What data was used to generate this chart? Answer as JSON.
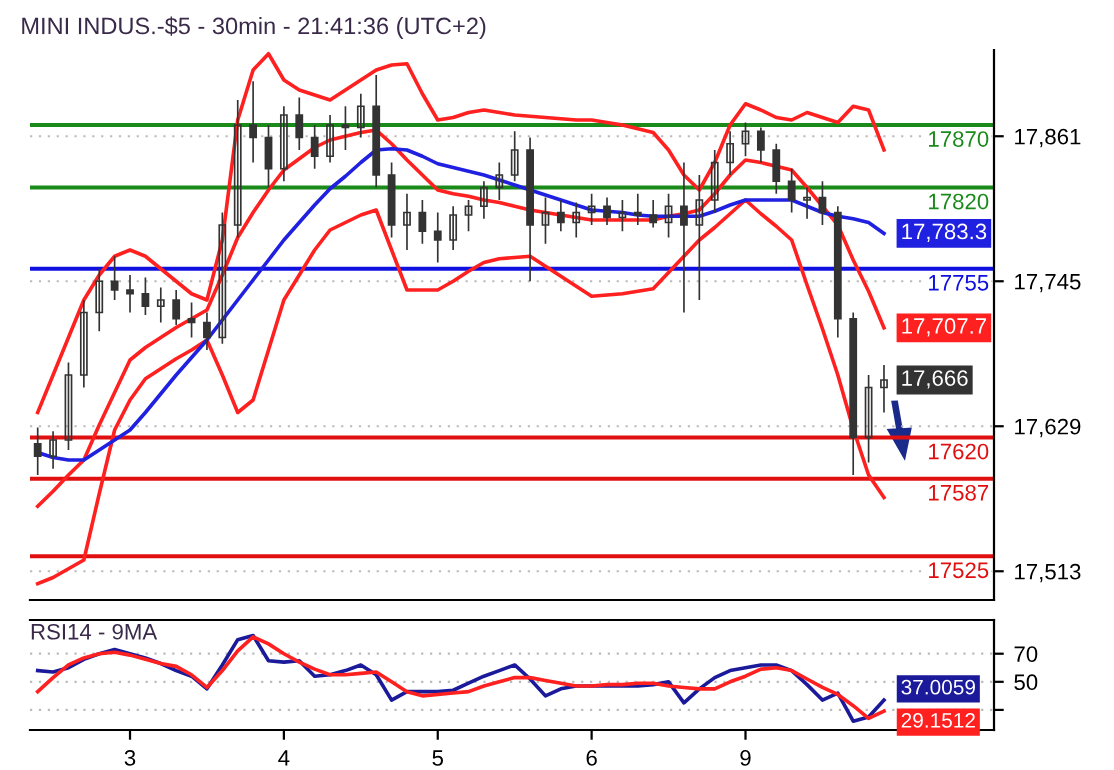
{
  "chart_data": [
    {
      "type": "candlestick",
      "title": "MINI INDUS.-$5 - 30min - 21:41:36 (UTC+2)",
      "color": "#333333",
      "categories": [
        null,
        null,
        null,
        null,
        null,
        null,
        null,
        null,
        null,
        null,
        null,
        null,
        null,
        null,
        null,
        null,
        null,
        null,
        null,
        null,
        null,
        null,
        null,
        null,
        null,
        null,
        null,
        null,
        null,
        null,
        null,
        null,
        null,
        null,
        null,
        null,
        null,
        null,
        null,
        null,
        null,
        null,
        null,
        null,
        null,
        null,
        null,
        null,
        null,
        null,
        null,
        null,
        null,
        null,
        null,
        null
      ],
      "ohlc": [
        [
          17615,
          17628,
          17590,
          17605
        ],
        [
          17605,
          17625,
          17595,
          17618
        ],
        [
          17618,
          17680,
          17610,
          17670
        ],
        [
          17670,
          17730,
          17660,
          17720
        ],
        [
          17720,
          17755,
          17705,
          17745
        ],
        [
          17745,
          17765,
          17730,
          17738
        ],
        [
          17738,
          17750,
          17720,
          17735
        ],
        [
          17735,
          17748,
          17718,
          17725
        ],
        [
          17725,
          17740,
          17712,
          17730
        ],
        [
          17730,
          17738,
          17710,
          17715
        ],
        [
          17715,
          17728,
          17700,
          17712
        ],
        [
          17712,
          17720,
          17690,
          17700
        ],
        [
          17700,
          17800,
          17695,
          17790
        ],
        [
          17790,
          17890,
          17780,
          17870
        ],
        [
          17870,
          17905,
          17840,
          17860
        ],
        [
          17860,
          17870,
          17820,
          17835
        ],
        [
          17835,
          17885,
          17825,
          17878
        ],
        [
          17878,
          17892,
          17850,
          17860
        ],
        [
          17860,
          17870,
          17835,
          17845
        ],
        [
          17845,
          17878,
          17840,
          17870
        ],
        [
          17870,
          17885,
          17850,
          17868
        ],
        [
          17868,
          17895,
          17860,
          17885
        ],
        [
          17885,
          17910,
          17820,
          17830
        ],
        [
          17830,
          17840,
          17780,
          17790
        ],
        [
          17790,
          17815,
          17770,
          17800
        ],
        [
          17800,
          17810,
          17775,
          17785
        ],
        [
          17785,
          17800,
          17760,
          17778
        ],
        [
          17778,
          17805,
          17770,
          17798
        ],
        [
          17798,
          17810,
          17785,
          17805
        ],
        [
          17805,
          17825,
          17795,
          17820
        ],
        [
          17820,
          17840,
          17810,
          17830
        ],
        [
          17830,
          17865,
          17825,
          17850
        ],
        [
          17850,
          17860,
          17745,
          17790
        ],
        [
          17790,
          17812,
          17775,
          17800
        ],
        [
          17800,
          17810,
          17785,
          17792
        ],
        [
          17792,
          17808,
          17780,
          17800
        ],
        [
          17800,
          17815,
          17790,
          17805
        ],
        [
          17805,
          17812,
          17790,
          17796
        ],
        [
          17796,
          17810,
          17785,
          17800
        ],
        [
          17800,
          17815,
          17790,
          17798
        ],
        [
          17798,
          17810,
          17788,
          17792
        ],
        [
          17792,
          17815,
          17780,
          17805
        ],
        [
          17805,
          17840,
          17720,
          17790
        ],
        [
          17790,
          17830,
          17730,
          17810
        ],
        [
          17810,
          17850,
          17800,
          17840
        ],
        [
          17840,
          17865,
          17830,
          17855
        ],
        [
          17855,
          17872,
          17845,
          17865
        ],
        [
          17865,
          17868,
          17840,
          17850
        ],
        [
          17850,
          17855,
          17815,
          17825
        ],
        [
          17825,
          17835,
          17800,
          17810
        ],
        [
          17810,
          17820,
          17795,
          17812
        ],
        [
          17812,
          17825,
          17790,
          17800
        ],
        [
          17800,
          17805,
          17700,
          17715
        ],
        [
          17715,
          17720,
          17590,
          17620
        ],
        [
          17620,
          17670,
          17600,
          17660
        ],
        [
          17660,
          17678,
          17640,
          17666
        ]
      ],
      "value_labels": [
        null,
        null,
        null,
        null,
        null,
        null,
        null,
        null,
        null,
        null,
        null,
        null,
        null,
        null,
        null,
        null,
        null,
        null,
        null,
        null,
        null,
        null,
        null,
        null,
        null,
        null,
        null,
        null,
        null,
        null,
        null,
        null,
        null,
        null,
        null,
        null,
        null,
        null,
        null,
        null,
        null,
        null,
        null,
        null,
        null,
        null,
        null,
        null,
        null,
        null,
        null,
        null,
        null,
        null,
        null,
        "17,666"
      ],
      "series": [
        {
          "type": "line",
          "color": "#ff2020",
          "values": [
            17640,
            17670,
            17700,
            17730,
            17750,
            17765,
            17770,
            17765,
            17755,
            17745,
            17735,
            17730,
            17778,
            17874,
            17914,
            17927,
            17906,
            17898,
            17894,
            17890,
            17898,
            17906,
            17914,
            17918,
            17919,
            17895,
            17874,
            17876,
            17880,
            17882,
            17880,
            17878,
            17877,
            17876,
            17875,
            17874,
            17874,
            17872,
            17870,
            17867,
            17864,
            17850,
            17830,
            17818,
            17840,
            17870,
            17887,
            17882,
            17876,
            17874,
            17880,
            17876,
            17872,
            17885,
            17882,
            17850
          ]
        },
        {
          "type": "line",
          "color": "#ff2020",
          "values": [
            17565,
            17577,
            17590,
            17602,
            17630,
            17656,
            17682,
            17692,
            17700,
            17708,
            17715,
            17722,
            17750,
            17780,
            17800,
            17818,
            17834,
            17843,
            17852,
            17858,
            17861,
            17864,
            17866,
            17855,
            17842,
            17830,
            17818,
            17815,
            17813,
            17810,
            17808,
            17805,
            17802,
            17800,
            17798,
            17796,
            17794,
            17794,
            17794,
            17794,
            17794,
            17797,
            17799,
            17802,
            17815,
            17830,
            17842,
            17840,
            17837,
            17834,
            17820,
            17805,
            17790,
            17762,
            17737,
            17707.7
          ],
          "value_labels": [
            null,
            null,
            null,
            null,
            null,
            null,
            null,
            null,
            null,
            null,
            null,
            null,
            null,
            null,
            null,
            null,
            null,
            null,
            null,
            null,
            null,
            null,
            null,
            null,
            null,
            null,
            null,
            null,
            null,
            null,
            null,
            null,
            null,
            null,
            null,
            null,
            null,
            null,
            null,
            null,
            null,
            null,
            null,
            null,
            null,
            null,
            null,
            null,
            null,
            null,
            null,
            null,
            null,
            null,
            null,
            "17,707.7"
          ]
        },
        {
          "type": "line",
          "color": "#ff2020",
          "values": [
            17503,
            17508,
            17515,
            17522,
            17575,
            17626,
            17650,
            17667,
            17675,
            17683,
            17690,
            17698,
            17670,
            17640,
            17650,
            17690,
            17730,
            17750,
            17770,
            17786,
            17792,
            17798,
            17802,
            17770,
            17738,
            17738,
            17738,
            17745,
            17753,
            17760,
            17763,
            17764,
            17765,
            17757,
            17749,
            17741,
            17733,
            17734,
            17735,
            17737,
            17739,
            17752,
            17765,
            17778,
            17788,
            17799,
            17810,
            17799,
            17789,
            17778,
            17742,
            17707,
            17670,
            17627,
            17590,
            17572
          ]
        },
        {
          "type": "line",
          "color": "#2020e0",
          "values": [
            17608,
            17604,
            17602,
            17602,
            17610,
            17618,
            17626,
            17640,
            17655,
            17670,
            17684,
            17698,
            17714,
            17730,
            17746,
            17762,
            17778,
            17792,
            17806,
            17819,
            17829,
            17840,
            17850,
            17851,
            17850,
            17845,
            17839,
            17836,
            17833,
            17830,
            17826,
            17822,
            17818,
            17814,
            17810,
            17806,
            17802,
            17801,
            17800,
            17798,
            17797,
            17797,
            17797,
            17797,
            17801,
            17806,
            17810,
            17810,
            17810,
            17810,
            17805,
            17800,
            17797,
            17795,
            17792,
            17783.3
          ],
          "value_labels": [
            null,
            null,
            null,
            null,
            null,
            null,
            null,
            null,
            null,
            null,
            null,
            null,
            null,
            null,
            null,
            null,
            null,
            null,
            null,
            null,
            null,
            null,
            null,
            null,
            null,
            null,
            null,
            null,
            null,
            null,
            null,
            null,
            null,
            null,
            null,
            null,
            null,
            null,
            null,
            null,
            null,
            null,
            null,
            null,
            null,
            null,
            null,
            null,
            null,
            null,
            null,
            null,
            null,
            null,
            null,
            "17,783.3"
          ]
        }
      ],
      "ref_lines": [
        {
          "axis": "y",
          "value": 17870,
          "label": "17870",
          "color": "#1a8a1a"
        },
        {
          "axis": "y",
          "value": 17820,
          "label": "17820",
          "color": "#1a8a1a"
        },
        {
          "axis": "y",
          "value": 17755,
          "label": "17755",
          "color": "#1010e0"
        },
        {
          "axis": "y",
          "value": 17620,
          "label": "17620",
          "color": "#e01010"
        },
        {
          "axis": "y",
          "value": 17587,
          "label": "17587",
          "color": "#e01010"
        },
        {
          "axis": "y",
          "value": 17525,
          "label": "17525",
          "color": "#e01010"
        }
      ],
      "ylim": [
        17490,
        17930
      ],
      "yticks": [
        {
          "value": 17513,
          "label": "17,513"
        },
        {
          "value": 17629,
          "label": "17,629"
        },
        {
          "value": 17745,
          "label": "17,745"
        },
        {
          "value": 17861,
          "label": "17,861"
        }
      ],
      "grid": "y",
      "tick_labels": "y"
    },
    {
      "type": "line",
      "title": "RSI14 - 9MA",
      "categories": [
        null,
        null,
        null,
        null,
        null,
        null,
        "3",
        null,
        null,
        null,
        null,
        null,
        null,
        null,
        null,
        null,
        "4",
        null,
        null,
        null,
        null,
        null,
        null,
        null,
        null,
        null,
        "5",
        null,
        null,
        null,
        null,
        null,
        null,
        null,
        null,
        null,
        "6",
        null,
        null,
        null,
        null,
        null,
        null,
        null,
        null,
        null,
        "9",
        null,
        null,
        null,
        null,
        null,
        null,
        null,
        null,
        null
      ],
      "series": [
        {
          "color": "#1a1a9a",
          "values": [
            58,
            57,
            60,
            66,
            70,
            73,
            70,
            67,
            63,
            58,
            54,
            45,
            62,
            80,
            83,
            65,
            64,
            65,
            54,
            55,
            58,
            62,
            55,
            37,
            43,
            43,
            43,
            44,
            49,
            54,
            58,
            62,
            52,
            40,
            45,
            47,
            47,
            47,
            47,
            47,
            48,
            50,
            35,
            45,
            53,
            58,
            60,
            62,
            62,
            58,
            48,
            37,
            42,
            22,
            25,
            37.0059
          ],
          "value_labels": [
            null,
            null,
            null,
            null,
            null,
            null,
            null,
            null,
            null,
            null,
            null,
            null,
            null,
            null,
            null,
            null,
            null,
            null,
            null,
            null,
            null,
            null,
            null,
            null,
            null,
            null,
            null,
            null,
            null,
            null,
            null,
            null,
            null,
            null,
            null,
            null,
            null,
            null,
            null,
            null,
            null,
            null,
            null,
            null,
            null,
            null,
            null,
            null,
            null,
            null,
            null,
            null,
            null,
            null,
            null,
            "37.0059"
          ]
        },
        {
          "color": "#ff2020",
          "values": [
            43,
            53,
            62,
            67,
            70,
            71,
            69,
            66,
            63,
            61,
            55,
            46,
            58,
            72,
            82,
            77,
            70,
            64,
            59,
            55,
            55,
            56,
            57,
            50,
            43,
            40,
            41,
            42,
            43,
            47,
            50,
            53,
            53,
            51,
            49,
            47,
            47,
            48,
            48,
            49,
            49,
            47,
            46,
            45,
            45,
            50,
            54,
            59,
            60,
            58,
            52,
            46,
            41,
            33,
            24,
            29.1512
          ],
          "value_labels": [
            null,
            null,
            null,
            null,
            null,
            null,
            null,
            null,
            null,
            null,
            null,
            null,
            null,
            null,
            null,
            null,
            null,
            null,
            null,
            null,
            null,
            null,
            null,
            null,
            null,
            null,
            null,
            null,
            null,
            null,
            null,
            null,
            null,
            null,
            null,
            null,
            null,
            null,
            null,
            null,
            null,
            null,
            null,
            null,
            null,
            null,
            null,
            null,
            null,
            null,
            null,
            null,
            null,
            null,
            null,
            "29.1512"
          ]
        }
      ],
      "ylim": [
        15.7,
        94
      ],
      "yticks": [
        70,
        50,
        {
          "value": 30,
          "label": null
        }
      ],
      "grid": "y"
    }
  ]
}
